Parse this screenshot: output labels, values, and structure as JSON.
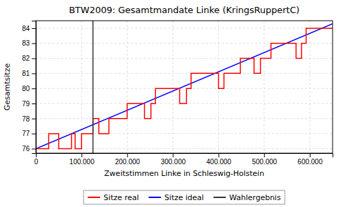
{
  "chart_data": {
    "type": "line",
    "title": "BTW2009: Gesamtmandate Linke (KringsRuppertC)",
    "xlabel": "Zweitstimmen Linke in Schleswig-Holstein",
    "ylabel": "Gesamtsitze",
    "xlim": [
      0,
      650000
    ],
    "ylim": [
      75.7,
      84.5
    ],
    "xticks": [
      0,
      {
        "value": 100000,
        "label": "100.000"
      },
      {
        "value": 200000,
        "label": "200.000"
      },
      {
        "value": 300000,
        "label": "300.000"
      },
      {
        "value": 400000,
        "label": "400.000"
      },
      {
        "value": 500000,
        "label": "500.000"
      },
      {
        "value": 600000,
        "label": "600.000"
      }
    ],
    "yticks": [
      76,
      77,
      78,
      79,
      80,
      81,
      82,
      83,
      84
    ],
    "grid": true,
    "legend": "bottom",
    "series": [
      {
        "name": "Sitze real",
        "color": "red",
        "x": [
          0,
          28000,
          28000,
          50000,
          50000,
          78000,
          78000,
          86000,
          86000,
          100000,
          100000,
          125000,
          125000,
          138000,
          138000,
          160000,
          160000,
          200000,
          200000,
          238000,
          238000,
          252000,
          252000,
          262000,
          262000,
          315000,
          315000,
          330000,
          330000,
          340000,
          340000,
          400000,
          400000,
          412000,
          412000,
          448000,
          448000,
          478000,
          478000,
          492000,
          492000,
          515000,
          515000,
          570000,
          570000,
          582000,
          582000,
          592000,
          592000,
          650000
        ],
        "values": [
          76,
          76,
          77,
          77,
          76,
          76,
          77,
          77,
          76,
          76,
          77,
          77,
          78,
          78,
          77,
          77,
          78,
          78,
          79,
          79,
          78,
          78,
          79,
          79,
          80,
          80,
          79,
          79,
          80,
          80,
          81,
          81,
          80,
          80,
          81,
          81,
          82,
          82,
          81,
          81,
          82,
          82,
          83,
          83,
          82,
          82,
          83,
          83,
          84,
          84
        ]
      },
      {
        "name": "Sitze ideal",
        "color": "blue",
        "x": [
          0,
          650000
        ],
        "values": [
          76.0,
          84.3
        ]
      },
      {
        "name": "Wahlergebnis",
        "type": "vline",
        "color": "#333333",
        "x": [
          125000
        ]
      }
    ]
  }
}
